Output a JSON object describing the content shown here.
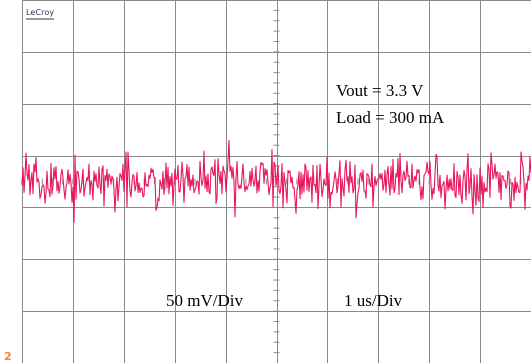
{
  "scope": {
    "brand": "LeCroy",
    "channel_marker": "2",
    "labels": {
      "vout": "Vout  = 3.3 V",
      "load": "Load = 300 mA",
      "vertical_scale": "50 mV/Div",
      "horizontal_scale": "1 us/Div"
    },
    "colors": {
      "trace": "#e8175d",
      "grid": "#8a8a8a",
      "background": "#ffffff",
      "marker": "#ff7f27"
    }
  },
  "chart_data": {
    "type": "line",
    "title": "",
    "xlabel": "",
    "ylabel": "",
    "x_units": "us",
    "y_units": "mV",
    "divisions": {
      "x": 10,
      "y": 7
    },
    "x_scale_per_div": "1 us/Div",
    "y_scale_per_div": "50 mV/Div",
    "xlim": [
      0,
      10
    ],
    "ylim": [
      -175,
      175
    ],
    "grid": true,
    "series": [
      {
        "description_note": "",
        "offset": 0,
        "noise_peak_to_peak": 80,
        "noise_rms": 12
      }
    ]
  }
}
